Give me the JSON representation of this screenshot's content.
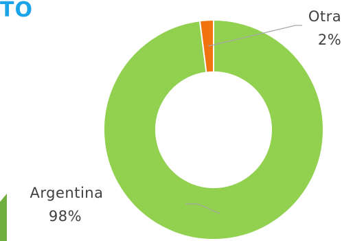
{
  "header": {
    "title_fragment": "TO"
  },
  "colors": {
    "accent": "#1AA3E8",
    "series_argentina": "#92D050",
    "series_otra": "#F0730F",
    "deco": "#6FAF3F",
    "leader": "#A6A6A6"
  },
  "chart_data": {
    "type": "pie",
    "style": "donut",
    "categories": [
      "Argentina",
      "Otra"
    ],
    "values": [
      98,
      2
    ],
    "value_labels": [
      "98%",
      "2%"
    ],
    "title": "",
    "legend": "none"
  }
}
